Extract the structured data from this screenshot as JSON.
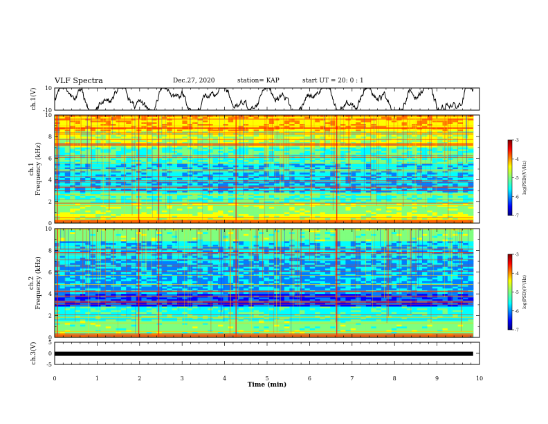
{
  "header": {
    "title": "VLF Spectra",
    "date": "Dec.27, 2020",
    "station": "station= KAP",
    "start_ut": "start  UT =   20: 0  : 1"
  },
  "chart_data": [
    {
      "type": "line",
      "panel": "ch1-waveform",
      "ylabel": "ch.1(V)",
      "ylim": [
        -10,
        10
      ],
      "yticklabels": [
        "10",
        "-10"
      ],
      "xlim": [
        0,
        10
      ]
    },
    {
      "type": "heatmap",
      "panel": "ch1-spectrogram",
      "ylabel": "ch.1\nFrequency (kHz)",
      "ylim": [
        0,
        10
      ],
      "yticklabels": [
        "0",
        "2",
        "4",
        "6",
        "8",
        "10"
      ],
      "xlim": [
        0,
        10
      ],
      "colorbar": {
        "label": "log(PSD)(V²/Hz)",
        "range": [
          -7,
          -3
        ],
        "ticklabels": [
          "-3",
          "-4",
          "-5",
          "-6",
          "-7"
        ]
      }
    },
    {
      "type": "heatmap",
      "panel": "ch2-spectrogram",
      "ylabel": "ch.2\nFrequency (kHz)",
      "ylim": [
        0,
        10
      ],
      "yticklabels": [
        "0",
        "2",
        "4",
        "6",
        "8",
        "10"
      ],
      "xlim": [
        0,
        10
      ],
      "colorbar": {
        "label": "log(PSD)(V²/Hz)",
        "range": [
          -7,
          -3
        ],
        "ticklabels": [
          "-3",
          "-4",
          "-5",
          "-6",
          "-7"
        ]
      }
    },
    {
      "type": "line",
      "panel": "ch3-waveform",
      "ylabel": "ch.3(V)",
      "ylim": [
        -5,
        5
      ],
      "yticklabels": [
        "5",
        "0",
        "-5"
      ],
      "xlim": [
        0,
        10
      ],
      "constant_level": -0.2
    }
  ],
  "xaxis": {
    "label": "Time  (min)",
    "ticklabels": [
      "0",
      "1",
      "2",
      "3",
      "4",
      "5",
      "6",
      "7",
      "8",
      "9",
      "10"
    ]
  },
  "palette": {
    "jet": [
      "#00007f",
      "#0000ff",
      "#007fff",
      "#00ffff",
      "#7fff7f",
      "#ffff00",
      "#ff7f00",
      "#ff0000",
      "#7f0000"
    ]
  }
}
